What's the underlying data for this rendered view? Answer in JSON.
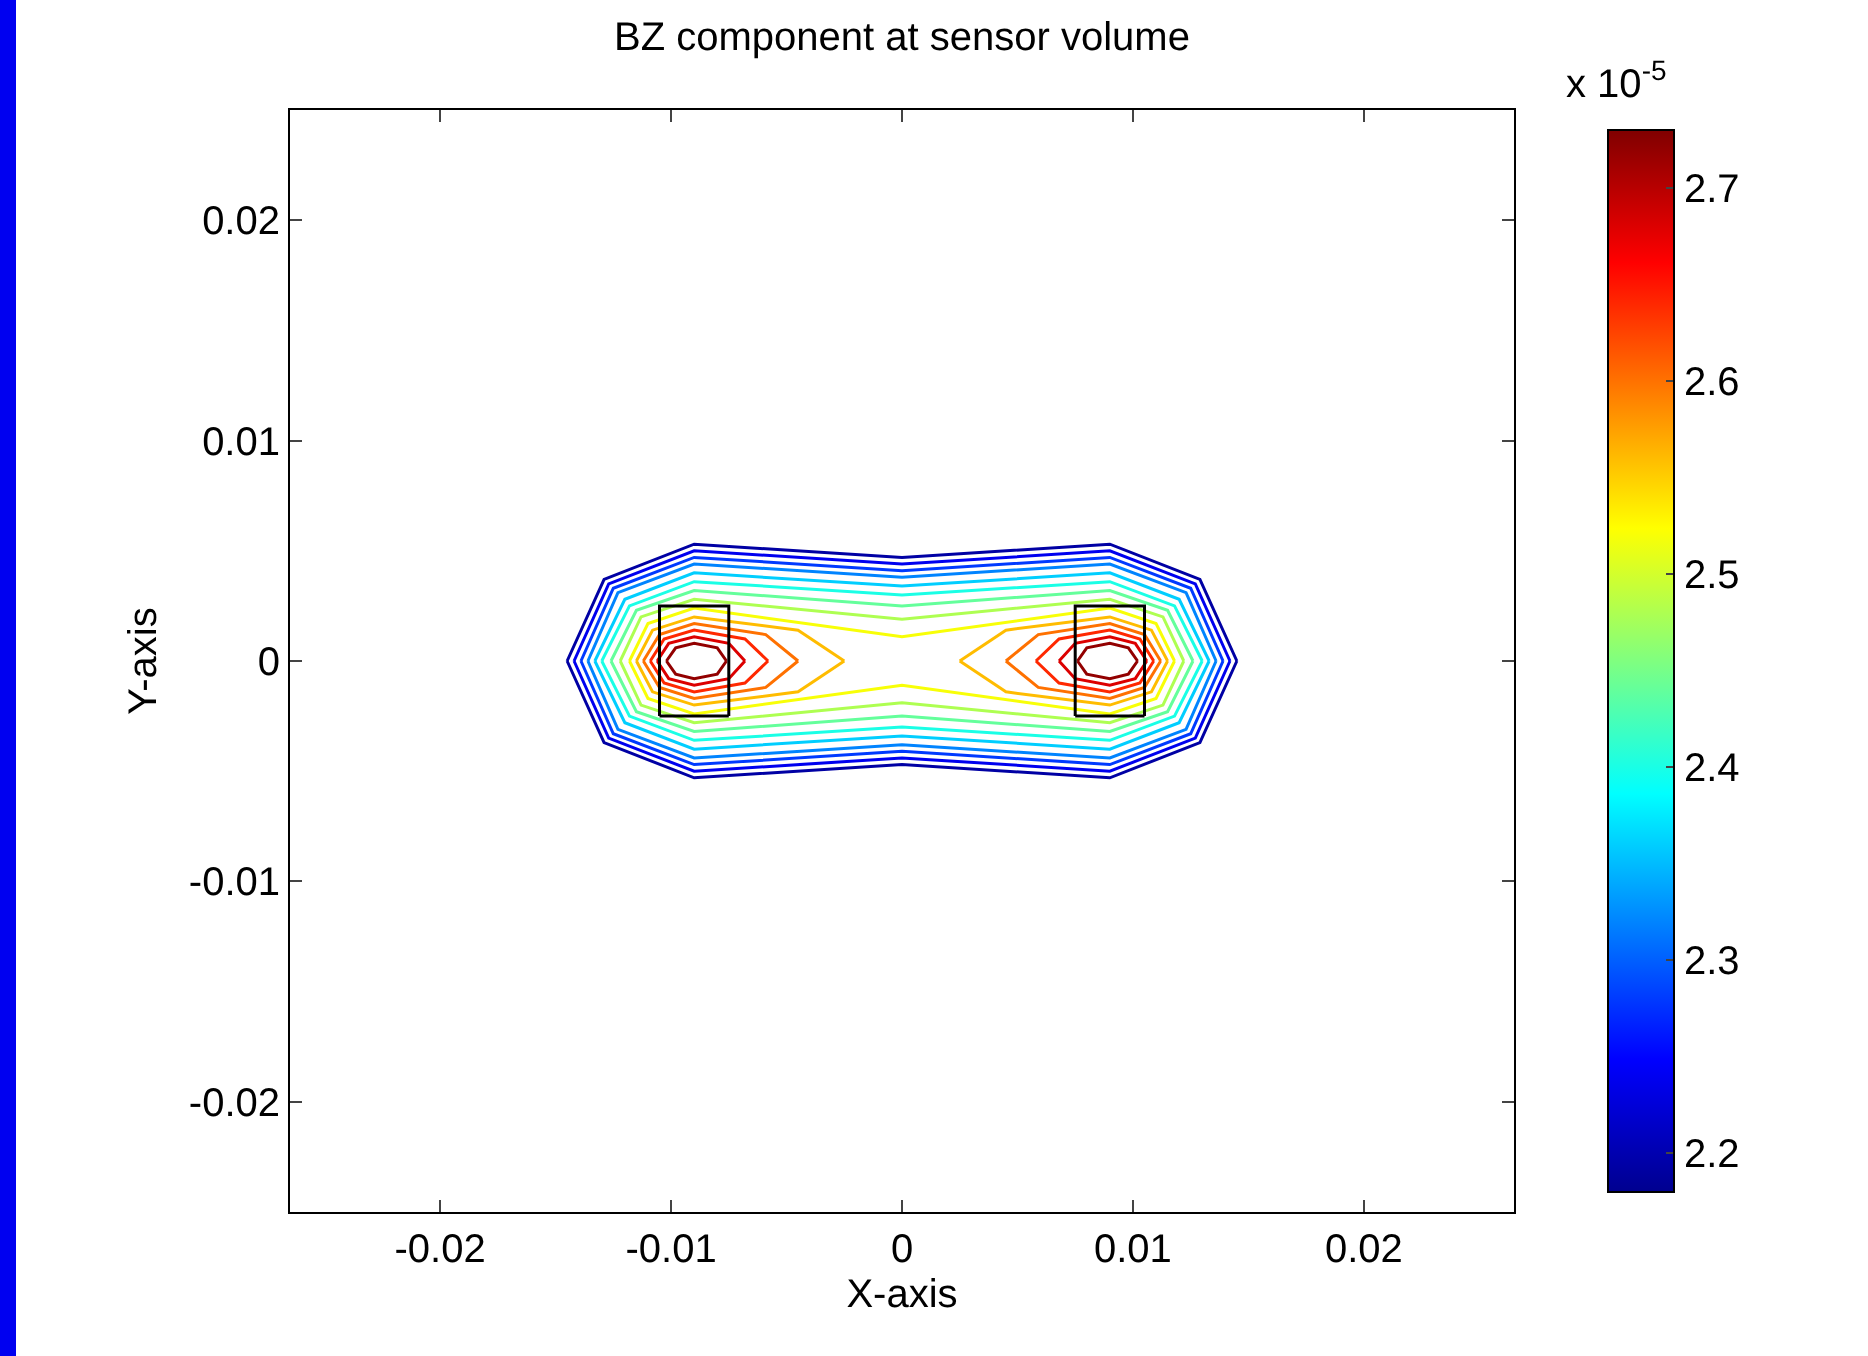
{
  "chart_data": {
    "type": "line",
    "title": "BZ component at sensor volume",
    "xlabel": "X-axis",
    "ylabel": "Y-axis",
    "annotations": [
      "x 10$^{-5}$"
    ],
    "clim": [
      2.18,
      2.73
    ],
    "cticks": [
      2.2,
      2.3,
      2.4,
      2.5,
      2.6,
      2.7
    ],
    "series": [
      {
        "color": "#0000a4",
        "x": [
          -0.0145,
          -0.0129,
          -0.009,
          0,
          0.009,
          0.0129,
          0.0145
        ],
        "values": [
          0,
          0.0037,
          0.0053,
          0.0047,
          0.0053,
          0.0037,
          0
        ]
      },
      {
        "color": "#0000a4",
        "x": [
          -0.0145,
          -0.0129,
          -0.009,
          0,
          0.009,
          0.0129,
          0.0145
        ],
        "values": [
          0,
          -0.0037,
          -0.0053,
          -0.0047,
          -0.0053,
          -0.0037,
          0
        ]
      },
      {
        "color": "#0000ef",
        "x": [
          -0.0142,
          -0.0127,
          -0.009,
          0,
          0.009,
          0.0127,
          0.0142
        ],
        "values": [
          0,
          0.0035,
          0.005,
          0.0044,
          0.005,
          0.0035,
          0
        ]
      },
      {
        "color": "#0000ef",
        "x": [
          -0.0142,
          -0.0127,
          -0.009,
          0,
          0.009,
          0.0127,
          0.0142
        ],
        "values": [
          0,
          -0.0035,
          -0.005,
          -0.0044,
          -0.005,
          -0.0035,
          0
        ]
      },
      {
        "color": "#003aff",
        "x": [
          -0.0139,
          -0.0125,
          -0.009,
          0,
          0.009,
          0.0125,
          0.0139
        ],
        "values": [
          0,
          0.0033,
          0.0047,
          0.0041,
          0.0047,
          0.0033,
          0
        ]
      },
      {
        "color": "#003aff",
        "x": [
          -0.0139,
          -0.0125,
          -0.009,
          0,
          0.009,
          0.0125,
          0.0139
        ],
        "values": [
          0,
          -0.0033,
          -0.0047,
          -0.0041,
          -0.0047,
          -0.0033,
          0
        ]
      },
      {
        "color": "#0084ff",
        "x": [
          -0.0136,
          -0.0123,
          -0.009,
          0,
          0.009,
          0.0123,
          0.0136
        ],
        "values": [
          0,
          0.0031,
          0.0044,
          0.0038,
          0.0044,
          0.0031,
          0
        ]
      },
      {
        "color": "#0084ff",
        "x": [
          -0.0136,
          -0.0123,
          -0.009,
          0,
          0.009,
          0.0123,
          0.0136
        ],
        "values": [
          0,
          -0.0031,
          -0.0044,
          -0.0038,
          -0.0044,
          -0.0031,
          0
        ]
      },
      {
        "color": "#00ceff",
        "x": [
          -0.0133,
          -0.012,
          -0.009,
          0,
          0.009,
          0.012,
          0.0133
        ],
        "values": [
          0,
          0.0028,
          0.004,
          0.0034,
          0.004,
          0.0028,
          0
        ]
      },
      {
        "color": "#00ceff",
        "x": [
          -0.0133,
          -0.012,
          -0.009,
          0,
          0.009,
          0.012,
          0.0133
        ],
        "values": [
          0,
          -0.0028,
          -0.004,
          -0.0034,
          -0.004,
          -0.0028,
          0
        ]
      },
      {
        "color": "#1affe6",
        "x": [
          -0.013,
          -0.0118,
          -0.009,
          0,
          0.009,
          0.0118,
          0.013
        ],
        "values": [
          0,
          0.0025,
          0.0036,
          0.003,
          0.0036,
          0.0025,
          0
        ]
      },
      {
        "color": "#1affe6",
        "x": [
          -0.013,
          -0.0118,
          -0.009,
          0,
          0.009,
          0.0118,
          0.013
        ],
        "values": [
          0,
          -0.0025,
          -0.0036,
          -0.003,
          -0.0036,
          -0.0025,
          0
        ]
      },
      {
        "color": "#64ff9b",
        "x": [
          -0.0126,
          -0.0115,
          -0.009,
          0,
          0.009,
          0.0115,
          0.0126
        ],
        "values": [
          0,
          0.0023,
          0.0032,
          0.0025,
          0.0032,
          0.0023,
          0
        ]
      },
      {
        "color": "#64ff9b",
        "x": [
          -0.0126,
          -0.0115,
          -0.009,
          0,
          0.009,
          0.0115,
          0.0126
        ],
        "values": [
          0,
          -0.0023,
          -0.0032,
          -0.0025,
          -0.0032,
          -0.0023,
          0
        ]
      },
      {
        "color": "#aeff51",
        "x": [
          -0.0122,
          -0.0113,
          -0.009,
          0,
          0.009,
          0.0113,
          0.0122
        ],
        "values": [
          0,
          0.002,
          0.0028,
          0.0019,
          0.0028,
          0.002,
          0
        ]
      },
      {
        "color": "#aeff51",
        "x": [
          -0.0122,
          -0.0113,
          -0.009,
          0,
          0.009,
          0.0113,
          0.0122
        ],
        "values": [
          0,
          -0.002,
          -0.0028,
          -0.0019,
          -0.0028,
          -0.002,
          0
        ]
      },
      {
        "color": "#f8ff07",
        "x": [
          -0.0118,
          -0.011,
          -0.009,
          0,
          0.009,
          0.011,
          0.0118
        ],
        "values": [
          0,
          0.0017,
          0.0024,
          0.0011,
          0.0024,
          0.0017,
          0
        ]
      },
      {
        "color": "#f8ff07",
        "x": [
          -0.0118,
          -0.011,
          -0.009,
          0,
          0.009,
          0.011,
          0.0118
        ],
        "values": [
          0,
          -0.0017,
          -0.0024,
          -0.0011,
          -0.0024,
          -0.0017,
          0
        ]
      },
      {
        "color": "#ffbc00",
        "x": [
          -0.0115,
          -0.0108,
          -0.009,
          -0.0045,
          -0.0025
        ],
        "values": [
          0,
          0.0014,
          0.002,
          0.0014,
          0
        ]
      },
      {
        "color": "#ffbc00",
        "x": [
          -0.0115,
          -0.0108,
          -0.009,
          -0.0045,
          -0.0025
        ],
        "values": [
          0,
          -0.0014,
          -0.002,
          -0.0014,
          0
        ]
      },
      {
        "color": "#ffbc00",
        "x": [
          0.0025,
          0.0045,
          0.009,
          0.0108,
          0.0115
        ],
        "values": [
          0,
          0.0014,
          0.002,
          0.0014,
          0
        ]
      },
      {
        "color": "#ffbc00",
        "x": [
          0.0025,
          0.0045,
          0.009,
          0.0108,
          0.0115
        ],
        "values": [
          0,
          -0.0014,
          -0.002,
          -0.0014,
          0
        ]
      },
      {
        "color": "#ff7100",
        "x": [
          -0.0112,
          -0.0105,
          -0.009,
          -0.0059,
          -0.0045
        ],
        "values": [
          0,
          0.0012,
          0.0017,
          0.0012,
          0
        ]
      },
      {
        "color": "#ff7100",
        "x": [
          -0.0112,
          -0.0105,
          -0.009,
          -0.0059,
          -0.0045
        ],
        "values": [
          0,
          -0.0012,
          -0.0017,
          -0.0012,
          0
        ]
      },
      {
        "color": "#ff7100",
        "x": [
          0.0045,
          0.0059,
          0.009,
          0.0105,
          0.0112
        ],
        "values": [
          0,
          0.0012,
          0.0017,
          0.0012,
          0
        ]
      },
      {
        "color": "#ff7100",
        "x": [
          0.0045,
          0.0059,
          0.009,
          0.0105,
          0.0112
        ],
        "values": [
          0,
          -0.0012,
          -0.0017,
          -0.0012,
          0
        ]
      },
      {
        "color": "#ff2800",
        "x": [
          -0.0109,
          -0.0103,
          -0.009,
          -0.0068,
          -0.0058
        ],
        "values": [
          0,
          0.001,
          0.0014,
          0.001,
          0
        ]
      },
      {
        "color": "#ff2800",
        "x": [
          -0.0109,
          -0.0103,
          -0.009,
          -0.0068,
          -0.0058
        ],
        "values": [
          0,
          -0.001,
          -0.0014,
          -0.001,
          0
        ]
      },
      {
        "color": "#ff2800",
        "x": [
          0.0058,
          0.0068,
          0.009,
          0.0103,
          0.0109
        ],
        "values": [
          0,
          0.001,
          0.0014,
          0.001,
          0
        ]
      },
      {
        "color": "#ff2800",
        "x": [
          0.0058,
          0.0068,
          0.009,
          0.0103,
          0.0109
        ],
        "values": [
          0,
          -0.001,
          -0.0014,
          -0.001,
          0
        ]
      },
      {
        "color": "#dc0000",
        "x": [
          -0.0106,
          -0.0101,
          -0.009,
          -0.0075,
          -0.0068
        ],
        "values": [
          0,
          0.0008,
          0.0011,
          0.0008,
          0
        ]
      },
      {
        "color": "#dc0000",
        "x": [
          -0.0106,
          -0.0101,
          -0.009,
          -0.0075,
          -0.0068
        ],
        "values": [
          0,
          -0.0008,
          -0.0011,
          -0.0008,
          0
        ]
      },
      {
        "color": "#dc0000",
        "x": [
          0.0068,
          0.0075,
          0.009,
          0.0101,
          0.0106
        ],
        "values": [
          0,
          0.0008,
          0.0011,
          0.0008,
          0
        ]
      },
      {
        "color": "#dc0000",
        "x": [
          0.0068,
          0.0075,
          0.009,
          0.0101,
          0.0106
        ],
        "values": [
          0,
          -0.0008,
          -0.0011,
          -0.0008,
          0
        ]
      },
      {
        "color": "#920000",
        "x": [
          -0.0102,
          -0.0098,
          -0.009,
          -0.008,
          -0.0076
        ],
        "values": [
          0,
          0.0006,
          0.0008,
          0.0006,
          0
        ]
      },
      {
        "color": "#920000",
        "x": [
          -0.0102,
          -0.0098,
          -0.009,
          -0.008,
          -0.0076
        ],
        "values": [
          0,
          -0.0006,
          -0.0008,
          -0.0006,
          0
        ]
      },
      {
        "color": "#920000",
        "x": [
          0.0076,
          0.008,
          0.009,
          0.0098,
          0.0102
        ],
        "values": [
          0,
          0.0006,
          0.0008,
          0.0006,
          0
        ]
      },
      {
        "color": "#920000",
        "x": [
          0.0076,
          0.008,
          0.009,
          0.0098,
          0.0102
        ],
        "values": [
          0,
          -0.0006,
          -0.0008,
          -0.0006,
          0
        ]
      },
      {
        "color": "#000000",
        "x": [
          -0.0105,
          -0.0105,
          -0.0075,
          -0.0075
        ],
        "values": [
          -0.0025,
          0.0025,
          0.0025,
          -0.0025
        ]
      },
      {
        "color": "#000000",
        "x": [
          -0.0105,
          -0.0075
        ],
        "values": [
          -0.0025,
          -0.0025
        ]
      },
      {
        "color": "#000000",
        "x": [
          0.0075,
          0.0075,
          0.0105,
          0.0105
        ],
        "values": [
          -0.0025,
          0.0025,
          0.0025,
          -0.0025
        ]
      },
      {
        "color": "#000000",
        "x": [
          0.0075,
          0.0105
        ],
        "values": [
          -0.0025,
          -0.0025
        ]
      }
    ],
    "xlim": [
      -0.0265,
      0.0265
    ],
    "xticks": [
      -0.02,
      -0.01,
      0,
      0.01,
      0.02
    ],
    "ylim": [
      -0.025,
      0.025
    ],
    "yticks": [
      -0.02,
      -0.01,
      0,
      0.01,
      0.02
    ],
    "grid": false
  }
}
